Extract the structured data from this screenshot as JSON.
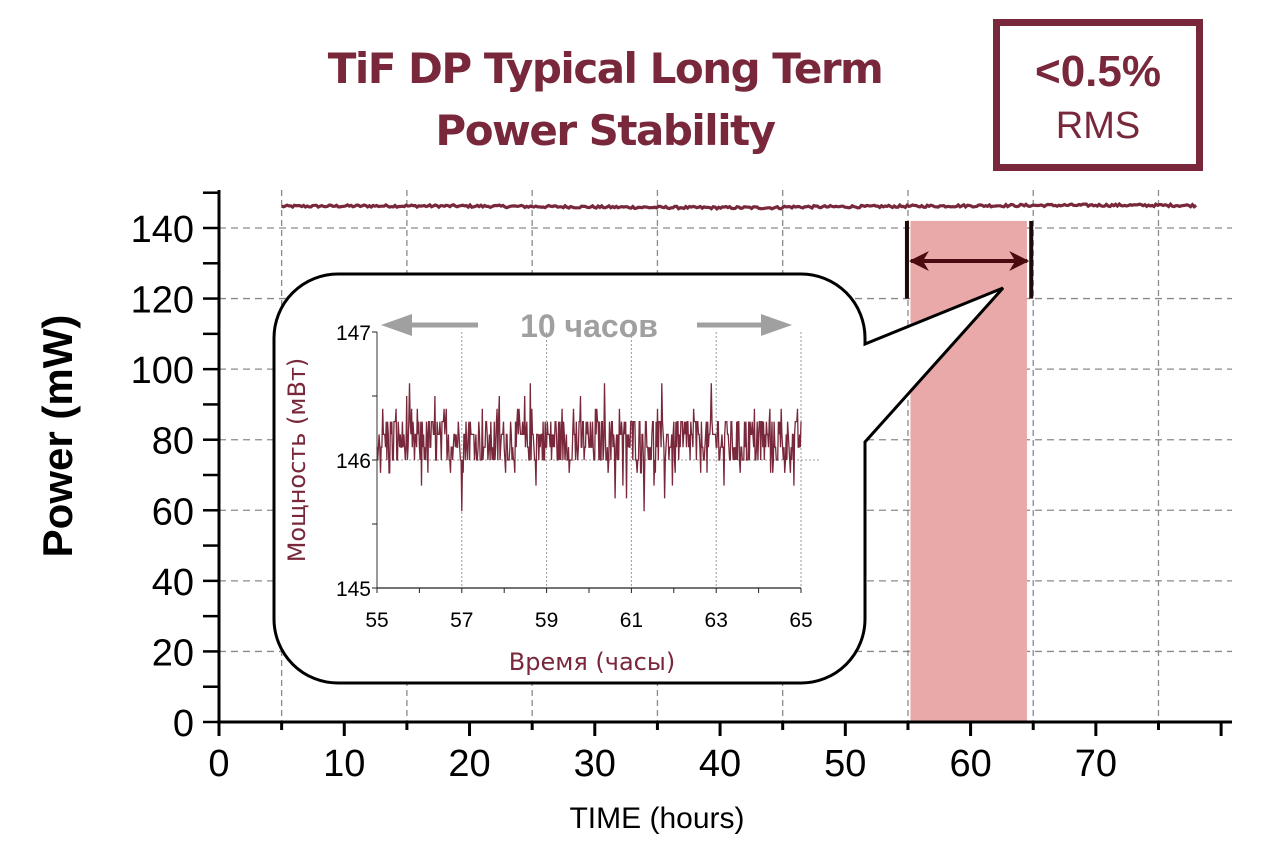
{
  "title_line1": "TiF DP Typical Long Term",
  "title_line2": "Power Stability",
  "rms_badge": {
    "value": "<0.5%",
    "label": "RMS"
  },
  "colors": {
    "brand": "#78283a",
    "highlight": "#eaa9a9",
    "arrow": "#4a0a10",
    "span_label": "#a0a0a0",
    "grid": "#8a8a8a"
  },
  "chart_data": [
    {
      "type": "line",
      "title": "TiF DP Typical Long Term Power Stability",
      "xlabel": "TIME (hours)",
      "ylabel": "Power (mW)",
      "xlim": [
        0,
        81
      ],
      "ylim": [
        0,
        150
      ],
      "xticks": [
        0,
        10,
        20,
        30,
        40,
        50,
        60,
        70
      ],
      "xtick_labels": [
        "0",
        "10",
        "20",
        "30",
        "40",
        "50",
        "60",
        "70"
      ],
      "yticks": [
        0,
        20,
        40,
        60,
        80,
        100,
        120,
        140
      ],
      "ytick_labels": [
        "0",
        "20",
        "40",
        "60",
        "80",
        "100",
        "120",
        "140"
      ],
      "grid": true,
      "grid_x": [
        5,
        15,
        25,
        35,
        45,
        55,
        65,
        75
      ],
      "series": [
        {
          "name": "Power",
          "x_start": 5,
          "x_end": 78,
          "mean": 146,
          "noise": 0.5
        }
      ],
      "highlight_region": {
        "x_start": 55.2,
        "x_end": 64.5,
        "y_top": 142
      },
      "span_marker": {
        "x_start": 55,
        "x_end": 65,
        "y": 130,
        "y_low": 120,
        "y_high": 142
      }
    },
    {
      "type": "line",
      "title": "",
      "xlabel": "Время (часы)",
      "ylabel": "Мощность (мВт)",
      "xlim": [
        55,
        65
      ],
      "ylim": [
        145,
        147
      ],
      "xticks": [
        55,
        57,
        59,
        61,
        63,
        65
      ],
      "xtick_labels": [
        "55",
        "57",
        "59",
        "61",
        "63",
        "65"
      ],
      "yticks": [
        145,
        146,
        147
      ],
      "ytick_labels": [
        "145",
        "146",
        "147"
      ],
      "grid": true,
      "span_annotation": "10 часов",
      "series": [
        {
          "name": "Мощность",
          "mean": 146.2,
          "levels": [
            145.6,
            145.7,
            145.8,
            145.9,
            146.0,
            146.1,
            146.2,
            146.3,
            146.4,
            146.5,
            146.6
          ],
          "samples": 600
        }
      ]
    }
  ]
}
